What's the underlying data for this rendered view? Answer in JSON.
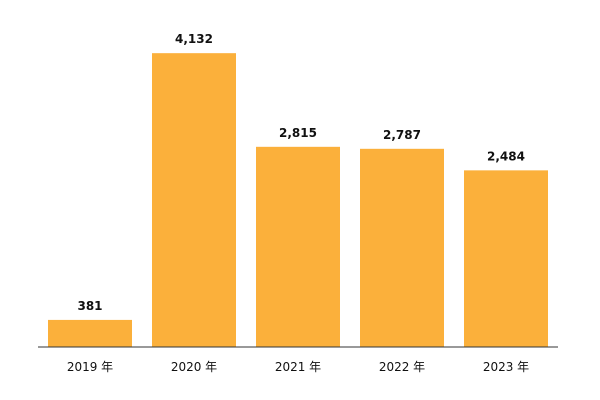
{
  "chart_data": {
    "type": "bar",
    "categories": [
      "2019 年",
      "2020 年",
      "2021 年",
      "2022 年",
      "2023 年"
    ],
    "values": [
      381,
      4132,
      2815,
      2787,
      2484
    ],
    "value_labels": [
      "381",
      "4,132",
      "2,815",
      "2,787",
      "2,484"
    ],
    "ylim": [
      0,
      4500
    ],
    "grid": false,
    "colors": {
      "bar": "#FBB03B",
      "axis": "#333333",
      "text": "#111111"
    }
  }
}
